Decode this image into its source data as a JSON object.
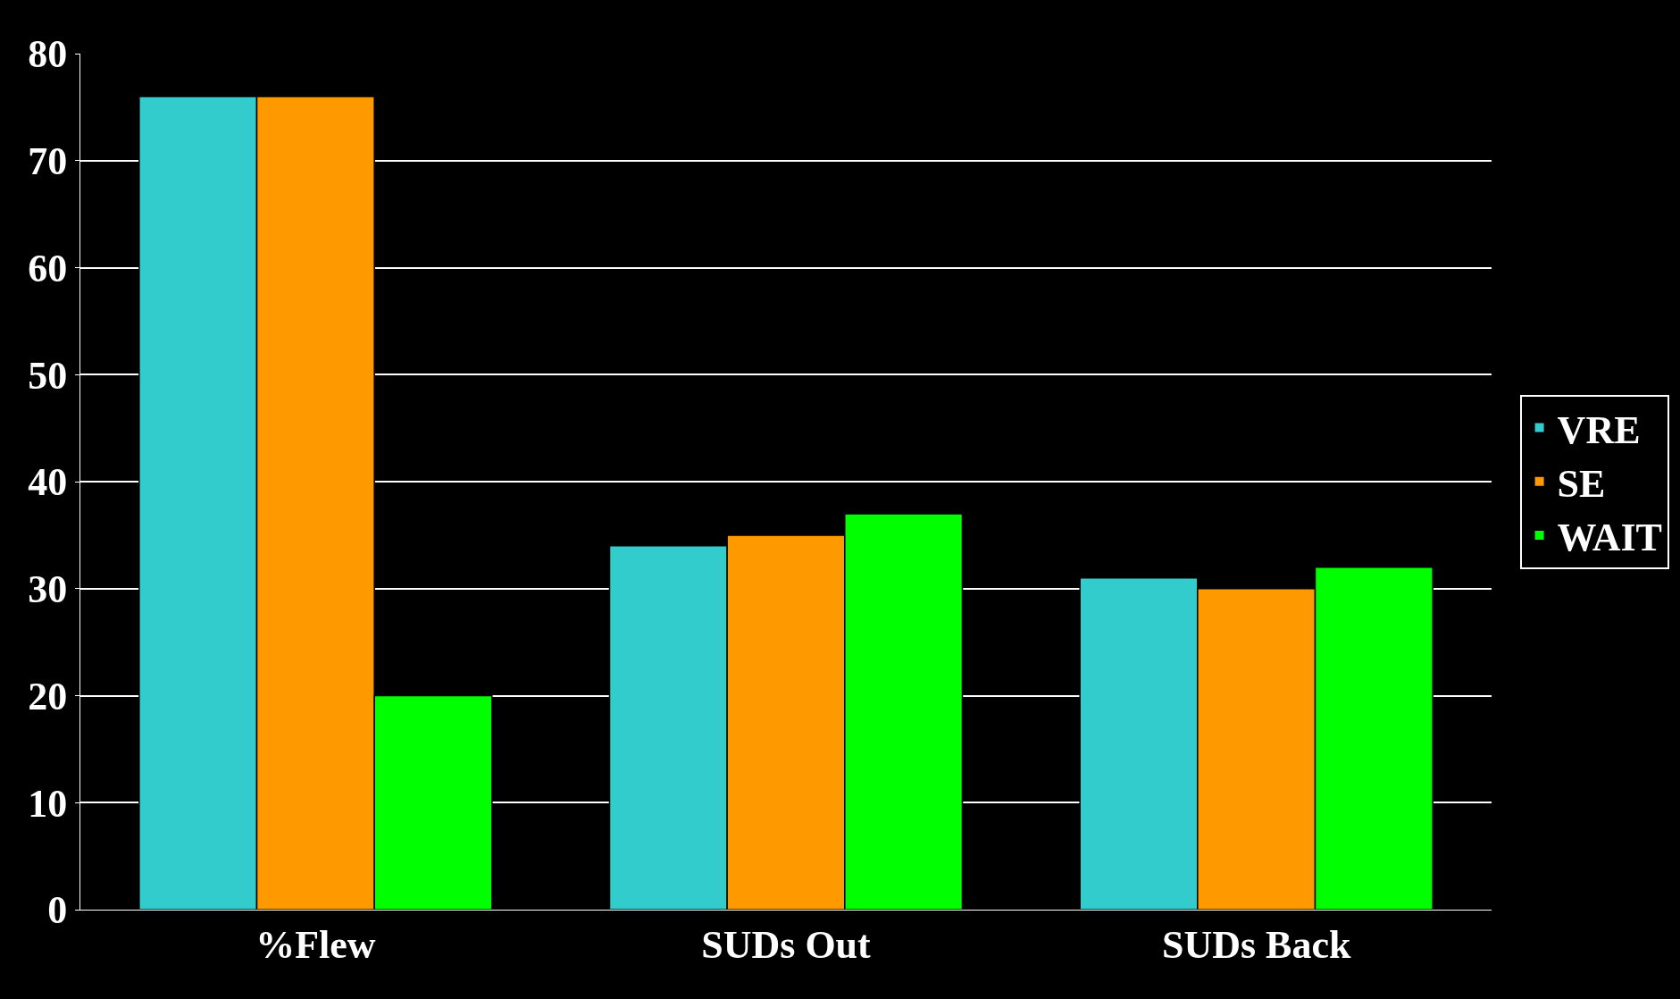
{
  "chart_data": {
    "type": "bar",
    "categories": [
      "%Flew",
      "SUDs Out",
      "SUDs Back"
    ],
    "series": [
      {
        "name": "VRE",
        "color": "#33cccc",
        "values": [
          76,
          34,
          31
        ]
      },
      {
        "name": "SE",
        "color": "#ff9900",
        "values": [
          76,
          35,
          30
        ]
      },
      {
        "name": "WAIT",
        "color": "#00ff00",
        "values": [
          20,
          37,
          32
        ]
      }
    ],
    "ylim": [
      0,
      80
    ],
    "yticks": [
      0,
      10,
      20,
      30,
      40,
      50,
      60,
      70,
      80
    ],
    "grid": "y",
    "legend": "right"
  }
}
